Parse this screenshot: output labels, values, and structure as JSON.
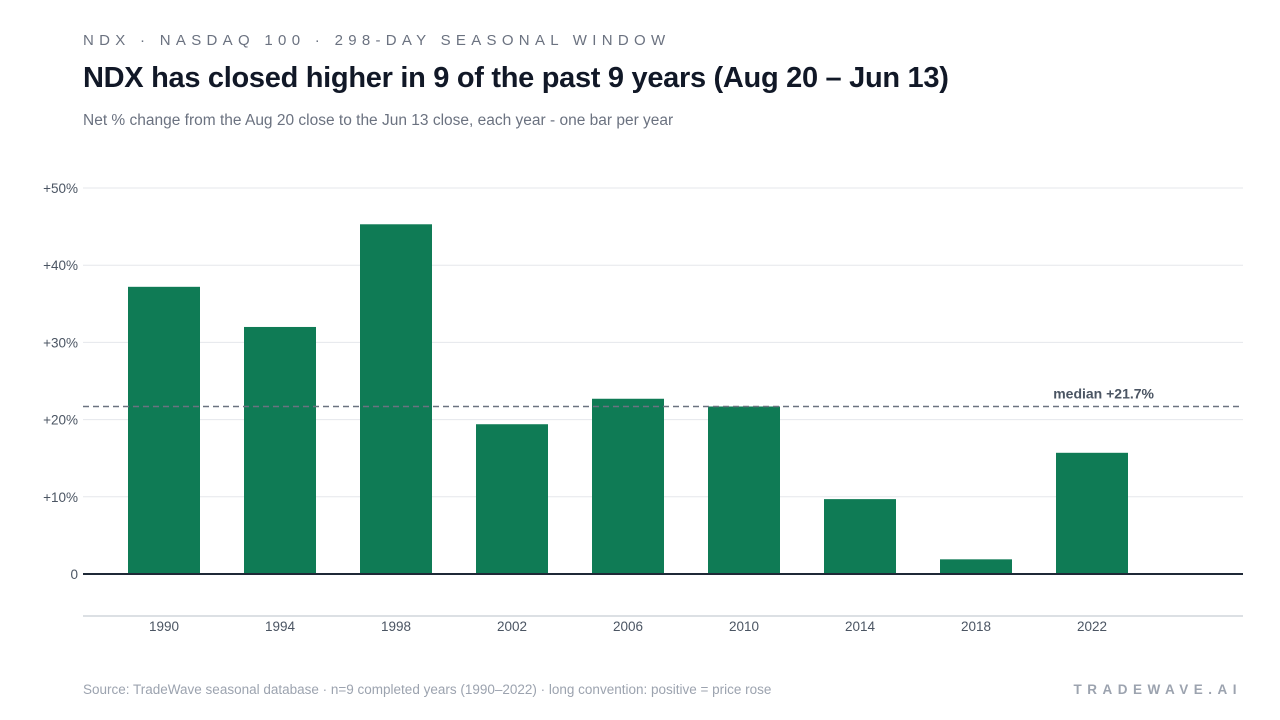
{
  "header": {
    "eyebrow": "NDX · NASDAQ 100 · 298-DAY SEASONAL WINDOW",
    "title": "NDX has closed higher in 9 of the past 9 years (Aug 20 – Jun 13)",
    "subtitle": "Net % change from the Aug 20 close to the Jun 13 close, each year - one bar per year"
  },
  "footer": {
    "source": "Source: TradeWave seasonal database · n=9 completed years (1990–2022) · long convention: positive = price rose",
    "brand": "TRADEWAVE.AI"
  },
  "colors": {
    "bar": "#0f7b55",
    "grid": "#e5e7eb",
    "baseline": "#1f2937",
    "median": "#6b7280",
    "tick_text": "#4b5563"
  },
  "chart_data": {
    "type": "bar",
    "categories": [
      "1990",
      "1994",
      "1998",
      "2002",
      "2006",
      "2010",
      "2014",
      "2018",
      "2022"
    ],
    "values": [
      37.2,
      32.0,
      45.3,
      19.4,
      22.7,
      21.7,
      9.7,
      1.9,
      15.7
    ],
    "ylim": [
      0,
      50
    ],
    "yticks": [
      0,
      10,
      20,
      30,
      40,
      50
    ],
    "ytick_labels": [
      "0",
      "+10%",
      "+20%",
      "+30%",
      "+40%",
      "+50%"
    ],
    "median": 21.7,
    "median_label": "median +21.7%",
    "grid": true,
    "xlabel": "",
    "ylabel": ""
  }
}
